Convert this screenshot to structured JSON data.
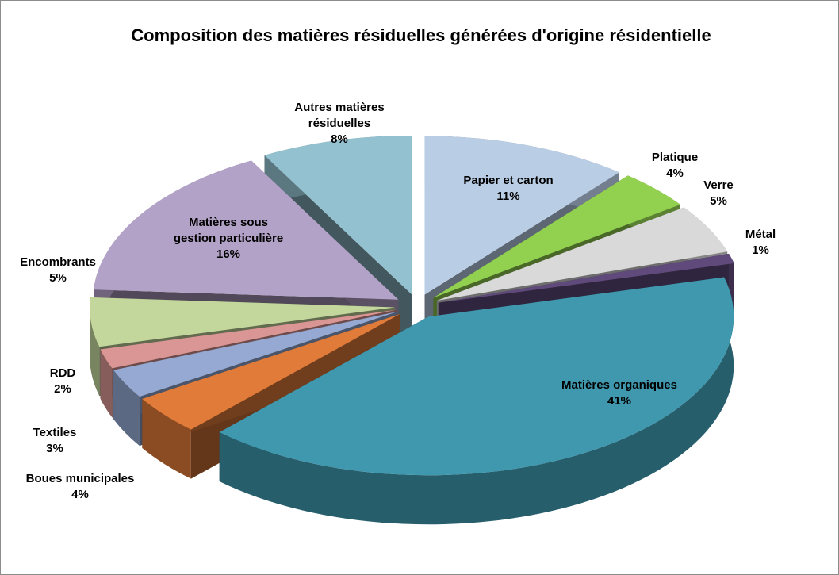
{
  "chart_data": {
    "type": "pie",
    "title": "Composition des matières résiduelles générées d'origine résidentielle",
    "categories": [
      "Papier et carton",
      "Platique",
      "Verre",
      "Métal",
      "Matières organiques",
      "Boues municipales",
      "Textiles",
      "RDD",
      "Encombrants",
      "Matières sous gestion particulière",
      "Autres matières résiduelles"
    ],
    "values": [
      11,
      4,
      5,
      1,
      41,
      4,
      3,
      2,
      5,
      16,
      8
    ],
    "value_labels": [
      "11%",
      "4%",
      "5%",
      "1%",
      "41%",
      "4%",
      "3%",
      "2%",
      "5%",
      "16%",
      "8%"
    ],
    "colors": [
      "#b9cde5",
      "#92d050",
      "#d9d9d9",
      "#604a7b",
      "#3f98ae",
      "#e07b39",
      "#95a9d3",
      "#d99694",
      "#c3d69b",
      "#b3a2c7",
      "#93c1d0"
    ]
  }
}
